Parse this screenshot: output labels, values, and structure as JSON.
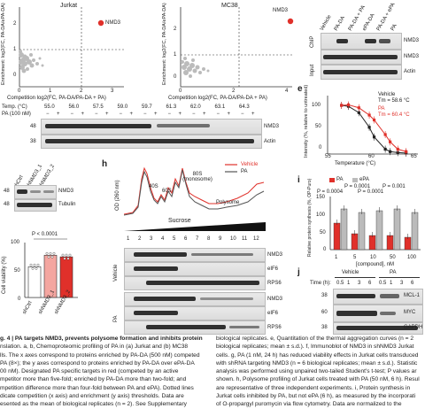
{
  "panel_a": {
    "title": "Jurkat",
    "ylabel": "Enrichment: log2(FC, PA-DA/ePA-DA)",
    "xlabel": "Competition log2(FC, PA-DA/PA-DA + PA)",
    "highlight": "NMD3",
    "yticks": [
      "2",
      "1",
      "0",
      "-1"
    ],
    "xticks": [
      "0",
      "1",
      "2",
      "3"
    ],
    "highlight_color": "#e0302a"
  },
  "panel_b": {
    "title": "MC38",
    "ylabel": "Enrichment: log2(FC, PA-DA/ePA-DA)",
    "xlabel": "Competition log2(FC, PA-DA/PA-DA + PA)",
    "highlight": "NMD3",
    "yticks": [
      "2",
      "1",
      "0",
      "-1"
    ],
    "xticks": [
      "0",
      "2",
      "4"
    ]
  },
  "panel_c": {
    "lanes": [
      "Vehicle",
      "PA-DA",
      "PA-DA + PA",
      "ePA-DA",
      "PA-DA + ePA",
      "PA"
    ],
    "rows": [
      "NMD3",
      "NMD3",
      "Actin"
    ],
    "side_labels": [
      "ChIP",
      "Input"
    ]
  },
  "panel_d": {
    "temp_label": "Temp. (°C)",
    "pa_label": "PA (100 nM)",
    "temps": [
      "55.0",
      "56.0",
      "57.5",
      "59.0",
      "59.7",
      "61.3",
      "62.0",
      "63.1",
      "64.3"
    ],
    "rows": [
      "NMD3",
      "Actin"
    ],
    "mw": [
      "48",
      "38"
    ]
  },
  "panel_e": {
    "ylabel": "Intensity (%, relative to untreated)",
    "xlabel": "Temperature (°C)",
    "legend": [
      {
        "name": "Vehicle",
        "tm": "Tm = 58.6 °C",
        "color": "#222222"
      },
      {
        "name": "PA",
        "tm": "Tm = 60.4 °C",
        "color": "#e0302a"
      }
    ],
    "xticks": [
      "55",
      "60",
      "65"
    ],
    "yticks": [
      "100",
      "50",
      "0"
    ]
  },
  "chart_data": [
    {
      "type": "line",
      "title": "",
      "xlabel": "Temperature (°C)",
      "ylabel": "Intensity (%, relative to untreated)",
      "xlim": [
        53,
        66
      ],
      "ylim": [
        0,
        120
      ],
      "series": [
        {
          "name": "Vehicle",
          "x": [
            55.0,
            56.0,
            57.5,
            59.0,
            59.7,
            61.3,
            62.0,
            63.1,
            64.3
          ],
          "y": [
            100,
            98,
            85,
            55,
            35,
            10,
            5,
            3,
            2
          ]
        },
        {
          "name": "PA",
          "x": [
            55.0,
            56.0,
            57.5,
            59.0,
            59.7,
            61.3,
            62.0,
            63.1,
            64.3
          ],
          "y": [
            100,
            101,
            95,
            80,
            70,
            40,
            25,
            10,
            5
          ]
        }
      ]
    },
    {
      "type": "bar",
      "title": "",
      "xlabel": "[compound], nM",
      "ylabel": "Relative protein synthesis (%, OP-Puro)",
      "categories": [
        "1",
        "5",
        "10",
        "50",
        "100"
      ],
      "ylim": [
        0,
        150
      ],
      "series": [
        {
          "name": "PA",
          "values": [
            75,
            45,
            40,
            40,
            35
          ]
        },
        {
          "name": "ePA",
          "values": [
            115,
            105,
            110,
            115,
            105
          ]
        }
      ],
      "annotations": [
        "P = 0.0004",
        "P = 0.0001",
        "P = 0.0001",
        "P = 0.0001",
        "P = 0.001"
      ]
    },
    {
      "type": "bar",
      "title": "",
      "xlabel": "",
      "ylabel": "Cell viability (%)",
      "categories": [
        "shCtrl",
        "shNMD3_1",
        "shNMD3_2"
      ],
      "ylim": [
        0,
        100
      ],
      "values": [
        56,
        77,
        74
      ],
      "annotations": [
        "P < 0.0001"
      ]
    }
  ],
  "panel_f": {
    "lanes": [
      "shCtrl",
      "shNMD3_1",
      "shNMD3_2"
    ],
    "rows": [
      "NMD3",
      "Tubulin"
    ],
    "mw": [
      "48",
      "48"
    ]
  },
  "panel_g": {
    "ylabel": "Cell viability (%)",
    "yticks": [
      "100",
      "50",
      "0"
    ],
    "p_value": "P < 0.0001",
    "categories": [
      "shCtrl",
      "shNMD3_1",
      "shNMD3_2"
    ]
  },
  "panel_h": {
    "ylabel": "OD (260 nm)",
    "peaks": [
      "40S",
      "60S",
      "80S (monosome)",
      "Polysome"
    ],
    "legend": [
      {
        "name": "Vehicle",
        "color": "#e0302a"
      },
      {
        "name": "PA",
        "color": "#555555"
      }
    ],
    "sucrose": "Sucrose",
    "fractions": [
      "1",
      "2",
      "3",
      "4",
      "5",
      "6",
      "7",
      "8",
      "9",
      "10",
      "11",
      "12"
    ],
    "rows": [
      "NMD3",
      "eIF6",
      "RPS6"
    ],
    "groups": [
      "Vehicle",
      "PA"
    ]
  },
  "panel_i": {
    "legend": [
      {
        "name": "PA",
        "color": "#e0302a"
      },
      {
        "name": "ePA",
        "color": "#bbbbbb"
      }
    ],
    "ylabel": "Relative protein synthesis (%, OP-Puro)",
    "xlabel": "[compound], nM",
    "yticks": [
      "150",
      "100",
      "50",
      "0"
    ],
    "xticks": [
      "1",
      "5",
      "10",
      "50",
      "100"
    ],
    "pvals": [
      "P = 0.0001",
      "P = 0.0001",
      "P = 0.001",
      "P = 0.0004",
      "P = 0.0001"
    ]
  },
  "panel_j": {
    "time_label": "Time (h):",
    "groups": [
      "Vehicle",
      "PA"
    ],
    "times": [
      "0.5",
      "1",
      "3",
      "6",
      "0.5",
      "1",
      "3",
      "6"
    ],
    "rows": [
      "MCL-1",
      "MYC",
      "GAPDH"
    ],
    "mw": [
      "38",
      "60",
      "38"
    ]
  },
  "panel_letters": [
    "e",
    "h",
    "i",
    "j"
  ],
  "caption_left": [
    "g. 4 | PA targets NMD3, prevents polysome formation and inhibits protein",
    "nslation. a, b, Chemoproteomic profiling of PA in (a) Jurkat and (b) MC38",
    "lls. The x axes correspond to proteins enriched by PA-DA (500 nM) competed",
    "PA (8×); the y axes correspond to proteins enriched by PA-DA over ePA-DA",
    "00 nM). Designated PA specific targets in red (competed by an active",
    "mpetitor more than five-fold; enriched by PA-DA more than two-fold; and",
    "mpetition difference more than four-fold between PA and ePA). Dotted lines",
    "dicate competition (x axis) and enrichment (y axis) thresholds. Data are",
    "esented as the mean of biological replicates (n = 2). See Supplementary"
  ],
  "caption_right": [
    "biological replicates. e, Quantitation of the thermal aggregation curves (n = 2",
    "biological replicates; mean ± s.d.). f, Immunoblot of NMD3 in shNMD3 Jurkat",
    "cells. g, PA (1 nM, 24 h) has reduced viability effects in Jurkat cells transduced",
    "with shRNA targeting NMD3 (n = 6 biological replicates; mean ± s.d.). Statistic",
    "analysis was performed using unpaired two-tailed Student's t-test; P values ar",
    "shown. h, Polysome profiling of Jurkat cells treated with PA (50 nM, 6 h). Resul",
    "are representative of three independent experiments. i, Protein synthesis in",
    "Jurkat cells inhibited by PA, but not ePA (6 h), as measured by the incorporati",
    "of O-propargyl puromycin via flow cytometry. Data are normalized to the"
  ]
}
